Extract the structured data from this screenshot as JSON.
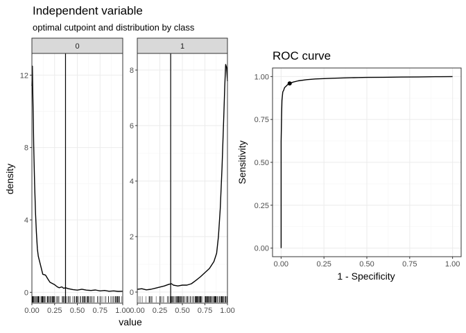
{
  "left": {
    "title": "Independent variable",
    "subtitle": "optimal cutpoint and distribution by class",
    "xlabel": "value",
    "ylabel": "density"
  },
  "right": {
    "title": "ROC curve",
    "xlabel": "1 - Specificity",
    "ylabel": "Sensitivity"
  },
  "colors": {
    "panel_border": "#333333",
    "grid_major": "#ebebeb",
    "grid_minor": "#f5f5f5",
    "strip_fill": "#d9d9d9",
    "line": "#000000"
  },
  "chart_data": [
    {
      "type": "line",
      "facet": "0",
      "xlim": [
        0,
        1
      ],
      "ylim": [
        -0.6,
        13.2
      ],
      "x_ticks": [
        "0.00",
        "0.25",
        "0.50",
        "0.75",
        "1.00"
      ],
      "y_ticks": [
        "0",
        "4",
        "8",
        "12"
      ],
      "cutpoint": 0.37,
      "rug": "dense",
      "x": [
        0.0,
        0.005,
        0.01,
        0.015,
        0.02,
        0.03,
        0.04,
        0.05,
        0.06,
        0.07,
        0.08,
        0.1,
        0.12,
        0.15,
        0.18,
        0.2,
        0.22,
        0.25,
        0.28,
        0.3,
        0.33,
        0.35,
        0.37,
        0.4,
        0.45,
        0.5,
        0.55,
        0.6,
        0.65,
        0.7,
        0.75,
        0.8,
        0.85,
        0.9,
        0.95,
        1.0
      ],
      "values": [
        11.4,
        12.5,
        11.0,
        9.6,
        8.1,
        6.0,
        4.4,
        3.3,
        2.4,
        2.0,
        1.8,
        1.4,
        1.0,
        0.95,
        0.7,
        0.55,
        0.5,
        0.42,
        0.3,
        0.25,
        0.3,
        0.22,
        0.25,
        0.2,
        0.15,
        0.12,
        0.17,
        0.12,
        0.1,
        0.13,
        0.08,
        0.1,
        0.06,
        0.08,
        0.05,
        0.06
      ]
    },
    {
      "type": "line",
      "facet": "1",
      "xlim": [
        0,
        1
      ],
      "ylim": [
        -0.4,
        8.6
      ],
      "x_ticks": [
        "0.00",
        "0.25",
        "0.50",
        "0.75",
        "1.00"
      ],
      "y_ticks": [
        "0",
        "2",
        "4",
        "6",
        "8"
      ],
      "cutpoint": 0.37,
      "rug": "dense",
      "x": [
        0.0,
        0.05,
        0.1,
        0.15,
        0.2,
        0.25,
        0.3,
        0.35,
        0.38,
        0.4,
        0.45,
        0.5,
        0.55,
        0.6,
        0.65,
        0.7,
        0.75,
        0.8,
        0.85,
        0.88,
        0.9,
        0.92,
        0.94,
        0.96,
        0.97,
        0.98,
        0.99,
        1.0
      ],
      "values": [
        0.1,
        0.12,
        0.08,
        0.1,
        0.14,
        0.18,
        0.22,
        0.28,
        0.3,
        0.25,
        0.22,
        0.25,
        0.25,
        0.3,
        0.42,
        0.55,
        0.7,
        0.85,
        1.1,
        1.4,
        2.0,
        3.0,
        4.5,
        6.4,
        7.4,
        8.2,
        8.1,
        7.6
      ]
    },
    {
      "type": "line",
      "title": "ROC curve",
      "xlabel": "1 - Specificity",
      "ylabel": "Sensitivity",
      "xlim": [
        -0.05,
        1.05
      ],
      "ylim": [
        -0.05,
        1.05
      ],
      "x_ticks": [
        "0.00",
        "0.25",
        "0.50",
        "0.75",
        "1.00"
      ],
      "y_ticks": [
        "0.00",
        "0.25",
        "0.50",
        "0.75",
        "1.00"
      ],
      "optimal_point": [
        0.05,
        0.96
      ],
      "x": [
        0.0,
        0.0,
        0.003,
        0.005,
        0.008,
        0.01,
        0.015,
        0.02,
        0.03,
        0.04,
        0.05,
        0.07,
        0.1,
        0.15,
        0.2,
        0.3,
        0.4,
        0.45,
        0.5,
        0.6,
        0.7,
        0.8,
        0.9,
        1.0
      ],
      "values": [
        0.0,
        0.62,
        0.78,
        0.86,
        0.89,
        0.91,
        0.92,
        0.935,
        0.945,
        0.955,
        0.96,
        0.968,
        0.975,
        0.982,
        0.986,
        0.99,
        0.993,
        0.994,
        0.995,
        0.996,
        0.997,
        0.998,
        0.999,
        1.0
      ]
    }
  ]
}
